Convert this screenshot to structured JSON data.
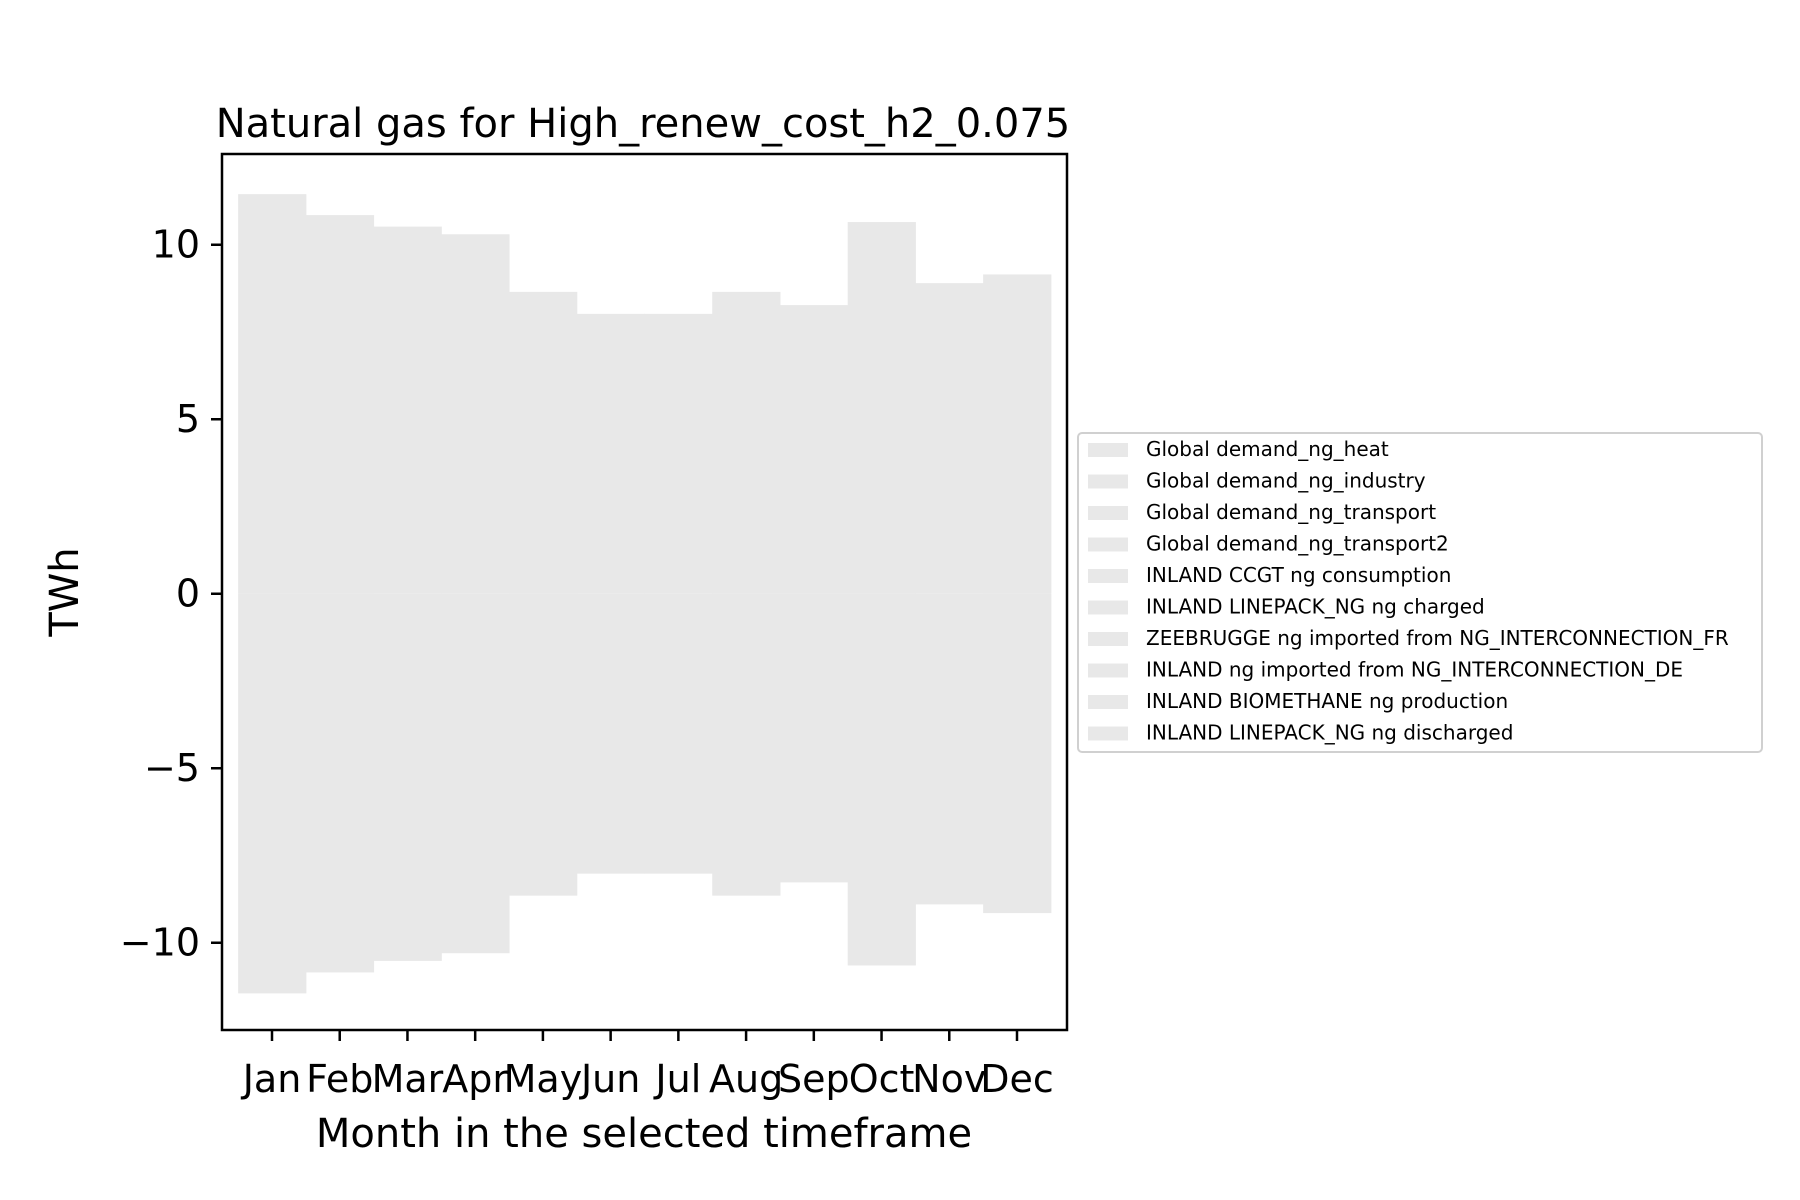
{
  "chart_data": {
    "type": "bar",
    "title": "Natural gas for High_renew_cost_h2_0.075",
    "xlabel": "Month in the selected timeframe",
    "ylabel": "TWh",
    "categories": [
      "Jan",
      "Feb",
      "Mar",
      "Apr",
      "May",
      "Jun",
      "Jul",
      "Aug",
      "Sep",
      "Oct",
      "Nov",
      "Dec"
    ],
    "ylim": [
      -12.5,
      12.6
    ],
    "yticks": [
      {
        "value": 10,
        "label": "10"
      },
      {
        "value": 5,
        "label": "5"
      },
      {
        "value": 0,
        "label": "0"
      },
      {
        "value": -5,
        "label": "−5"
      },
      {
        "value": -10,
        "label": "−10"
      }
    ],
    "bar_color": "#e8e8e8",
    "grid": false,
    "legend_position": "center-right, outside plot",
    "legend": [
      "Global demand_ng_heat",
      "Global demand_ng_industry",
      "Global demand_ng_transport",
      "Global demand_ng_transport2",
      "INLAND CCGT ng consumption",
      "INLAND LINEPACK_NG ng charged",
      "ZEEBRUGGE ng imported from NG_INTERCONNECTION_FR",
      "INLAND ng imported from NG_INTERCONNECTION_DE",
      "INLAND BIOMETHANE ng production",
      "INLAND LINEPACK_NG ng discharged"
    ],
    "positive_totals": [
      11.45,
      10.85,
      10.52,
      10.3,
      8.65,
      8.02,
      8.02,
      8.65,
      8.27,
      10.65,
      8.9,
      9.15
    ],
    "negative_totals": [
      -11.45,
      -10.85,
      -10.52,
      -10.3,
      -8.65,
      -8.02,
      -8.02,
      -8.65,
      -8.27,
      -10.65,
      -8.9,
      -9.15
    ]
  }
}
